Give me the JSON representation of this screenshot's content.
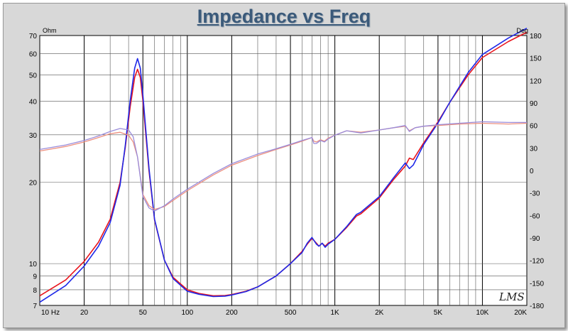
{
  "chart_data": {
    "type": "line",
    "title": "Impedance vs Freq",
    "left_unit": "Ohm",
    "right_unit": "Deg",
    "watermark": "LMS",
    "x_scale": "log",
    "xlim": [
      10,
      20000
    ],
    "y_left_scale": "log",
    "y_left_lim": [
      7,
      70
    ],
    "y_right_lim": [
      -180,
      180
    ],
    "grid": true,
    "x_ticks": [
      {
        "v": 10,
        "label": "10  Hz"
      },
      {
        "v": 20,
        "label": "20"
      },
      {
        "v": 50,
        "label": "50"
      },
      {
        "v": 100,
        "label": "100"
      },
      {
        "v": 200,
        "label": "200"
      },
      {
        "v": 500,
        "label": "500"
      },
      {
        "v": 1000,
        "label": "1K"
      },
      {
        "v": 2000,
        "label": "2K"
      },
      {
        "v": 5000,
        "label": "5K"
      },
      {
        "v": 10000,
        "label": "10K"
      },
      {
        "v": 20000,
        "label": "20K"
      }
    ],
    "y_left_ticks": [
      {
        "v": 7,
        "label": "7"
      },
      {
        "v": 8,
        "label": "8"
      },
      {
        "v": 9,
        "label": "9"
      },
      {
        "v": 10,
        "label": "10"
      },
      {
        "v": 20,
        "label": "20"
      },
      {
        "v": 30,
        "label": "30"
      },
      {
        "v": 40,
        "label": "40"
      },
      {
        "v": 50,
        "label": "50"
      },
      {
        "v": 60,
        "label": "60"
      },
      {
        "v": 70,
        "label": "70"
      }
    ],
    "y_right_ticks": [
      {
        "v": -180,
        "label": "-180"
      },
      {
        "v": -150,
        "label": "-150"
      },
      {
        "v": -120,
        "label": "-120"
      },
      {
        "v": -90,
        "label": "-90"
      },
      {
        "v": -60,
        "label": "-60"
      },
      {
        "v": -30,
        "label": "-30"
      },
      {
        "v": 0,
        "label": "0"
      },
      {
        "v": 30,
        "label": "30"
      },
      {
        "v": 60,
        "label": "60"
      },
      {
        "v": 90,
        "label": "90"
      },
      {
        "v": 120,
        "label": "120"
      },
      {
        "v": 150,
        "label": "150"
      },
      {
        "v": 180,
        "label": "180"
      }
    ],
    "series": [
      {
        "color": "#e8141c",
        "axis": "left",
        "kind": "impedance",
        "x": [
          10,
          15,
          20,
          25,
          30,
          35,
          38,
          41,
          44,
          46,
          48,
          50,
          55,
          60,
          70,
          80,
          100,
          120,
          150,
          180,
          200,
          250,
          300,
          400,
          500,
          600,
          650,
          700,
          750,
          780,
          820,
          860,
          900,
          1000,
          1200,
          1400,
          1500,
          2000,
          2500,
          3000,
          3200,
          3400,
          4000,
          5000,
          6000,
          8000,
          10000,
          15000,
          20000
        ],
        "y": [
          7.6,
          8.7,
          10.2,
          12.0,
          14.6,
          20.0,
          27.0,
          38.0,
          49.0,
          52.5,
          49.0,
          40.0,
          22.0,
          14.5,
          10.3,
          8.9,
          8.0,
          7.75,
          7.6,
          7.62,
          7.68,
          7.9,
          8.2,
          9.0,
          10.0,
          11.1,
          11.8,
          12.4,
          11.9,
          11.6,
          11.9,
          11.6,
          11.9,
          12.3,
          13.6,
          15.0,
          15.3,
          17.5,
          20.5,
          23.0,
          24.6,
          24.3,
          28.0,
          33.5,
          39.5,
          50.0,
          58.0,
          66.5,
          72.0
        ]
      },
      {
        "color": "#1e28e8",
        "axis": "left",
        "kind": "impedance",
        "x": [
          10,
          15,
          20,
          25,
          30,
          35,
          38,
          41,
          44,
          46,
          48,
          50,
          55,
          60,
          70,
          80,
          100,
          120,
          150,
          180,
          200,
          250,
          300,
          400,
          500,
          600,
          650,
          700,
          750,
          780,
          820,
          860,
          900,
          1000,
          1200,
          1400,
          1500,
          2000,
          2500,
          3000,
          3200,
          3400,
          4000,
          5000,
          6000,
          8000,
          10000,
          15000,
          20000
        ],
        "y": [
          7.2,
          8.3,
          9.8,
          11.6,
          14.2,
          19.5,
          27.5,
          40.0,
          53.0,
          57.5,
          53.0,
          42.0,
          22.5,
          14.6,
          10.3,
          8.8,
          7.9,
          7.7,
          7.55,
          7.58,
          7.65,
          7.88,
          8.2,
          9.0,
          10.0,
          11.0,
          11.9,
          12.5,
          11.8,
          11.6,
          11.9,
          11.5,
          11.8,
          12.3,
          13.7,
          15.2,
          15.5,
          17.7,
          20.8,
          23.6,
          22.5,
          23.2,
          27.6,
          33.2,
          39.5,
          51.0,
          59.5,
          68.5,
          74.5
        ]
      },
      {
        "color": "#ec9080",
        "axis": "right",
        "kind": "phase",
        "x": [
          10,
          15,
          20,
          25,
          30,
          35,
          40,
          43,
          46,
          50,
          55,
          60,
          70,
          80,
          100,
          150,
          200,
          300,
          400,
          500,
          600,
          700,
          720,
          750,
          800,
          850,
          900,
          1000,
          1200,
          1500,
          2000,
          2500,
          3000,
          3200,
          3500,
          4000,
          5000,
          7000,
          10000,
          15000,
          20000
        ],
        "y": [
          26,
          32,
          38,
          44,
          49,
          51,
          47,
          38,
          18,
          -32,
          -47,
          -52,
          -48,
          -40,
          -27,
          -6,
          7,
          20,
          28,
          34,
          39,
          44,
          39,
          38,
          41,
          39,
          43,
          47,
          53,
          51,
          54,
          57,
          59,
          53,
          57,
          59,
          60,
          62,
          63,
          62,
          63
        ]
      },
      {
        "color": "#9a8cda",
        "axis": "right",
        "kind": "phase",
        "x": [
          10,
          15,
          20,
          25,
          30,
          35,
          40,
          43,
          46,
          50,
          55,
          60,
          70,
          80,
          100,
          150,
          200,
          300,
          400,
          500,
          600,
          700,
          720,
          750,
          800,
          850,
          900,
          1000,
          1200,
          1500,
          2000,
          2500,
          3000,
          3200,
          3500,
          4000,
          5000,
          7000,
          10000,
          15000,
          20000
        ],
        "y": [
          28,
          34,
          40,
          46,
          52,
          56,
          54,
          45,
          18,
          -35,
          -50,
          -54,
          -47,
          -38,
          -25,
          -4,
          9,
          22,
          29,
          35,
          40,
          44,
          36,
          36,
          40,
          38,
          42,
          47,
          53,
          50,
          54,
          57,
          60,
          52,
          57,
          59,
          61,
          63,
          65,
          64,
          64
        ]
      }
    ]
  }
}
